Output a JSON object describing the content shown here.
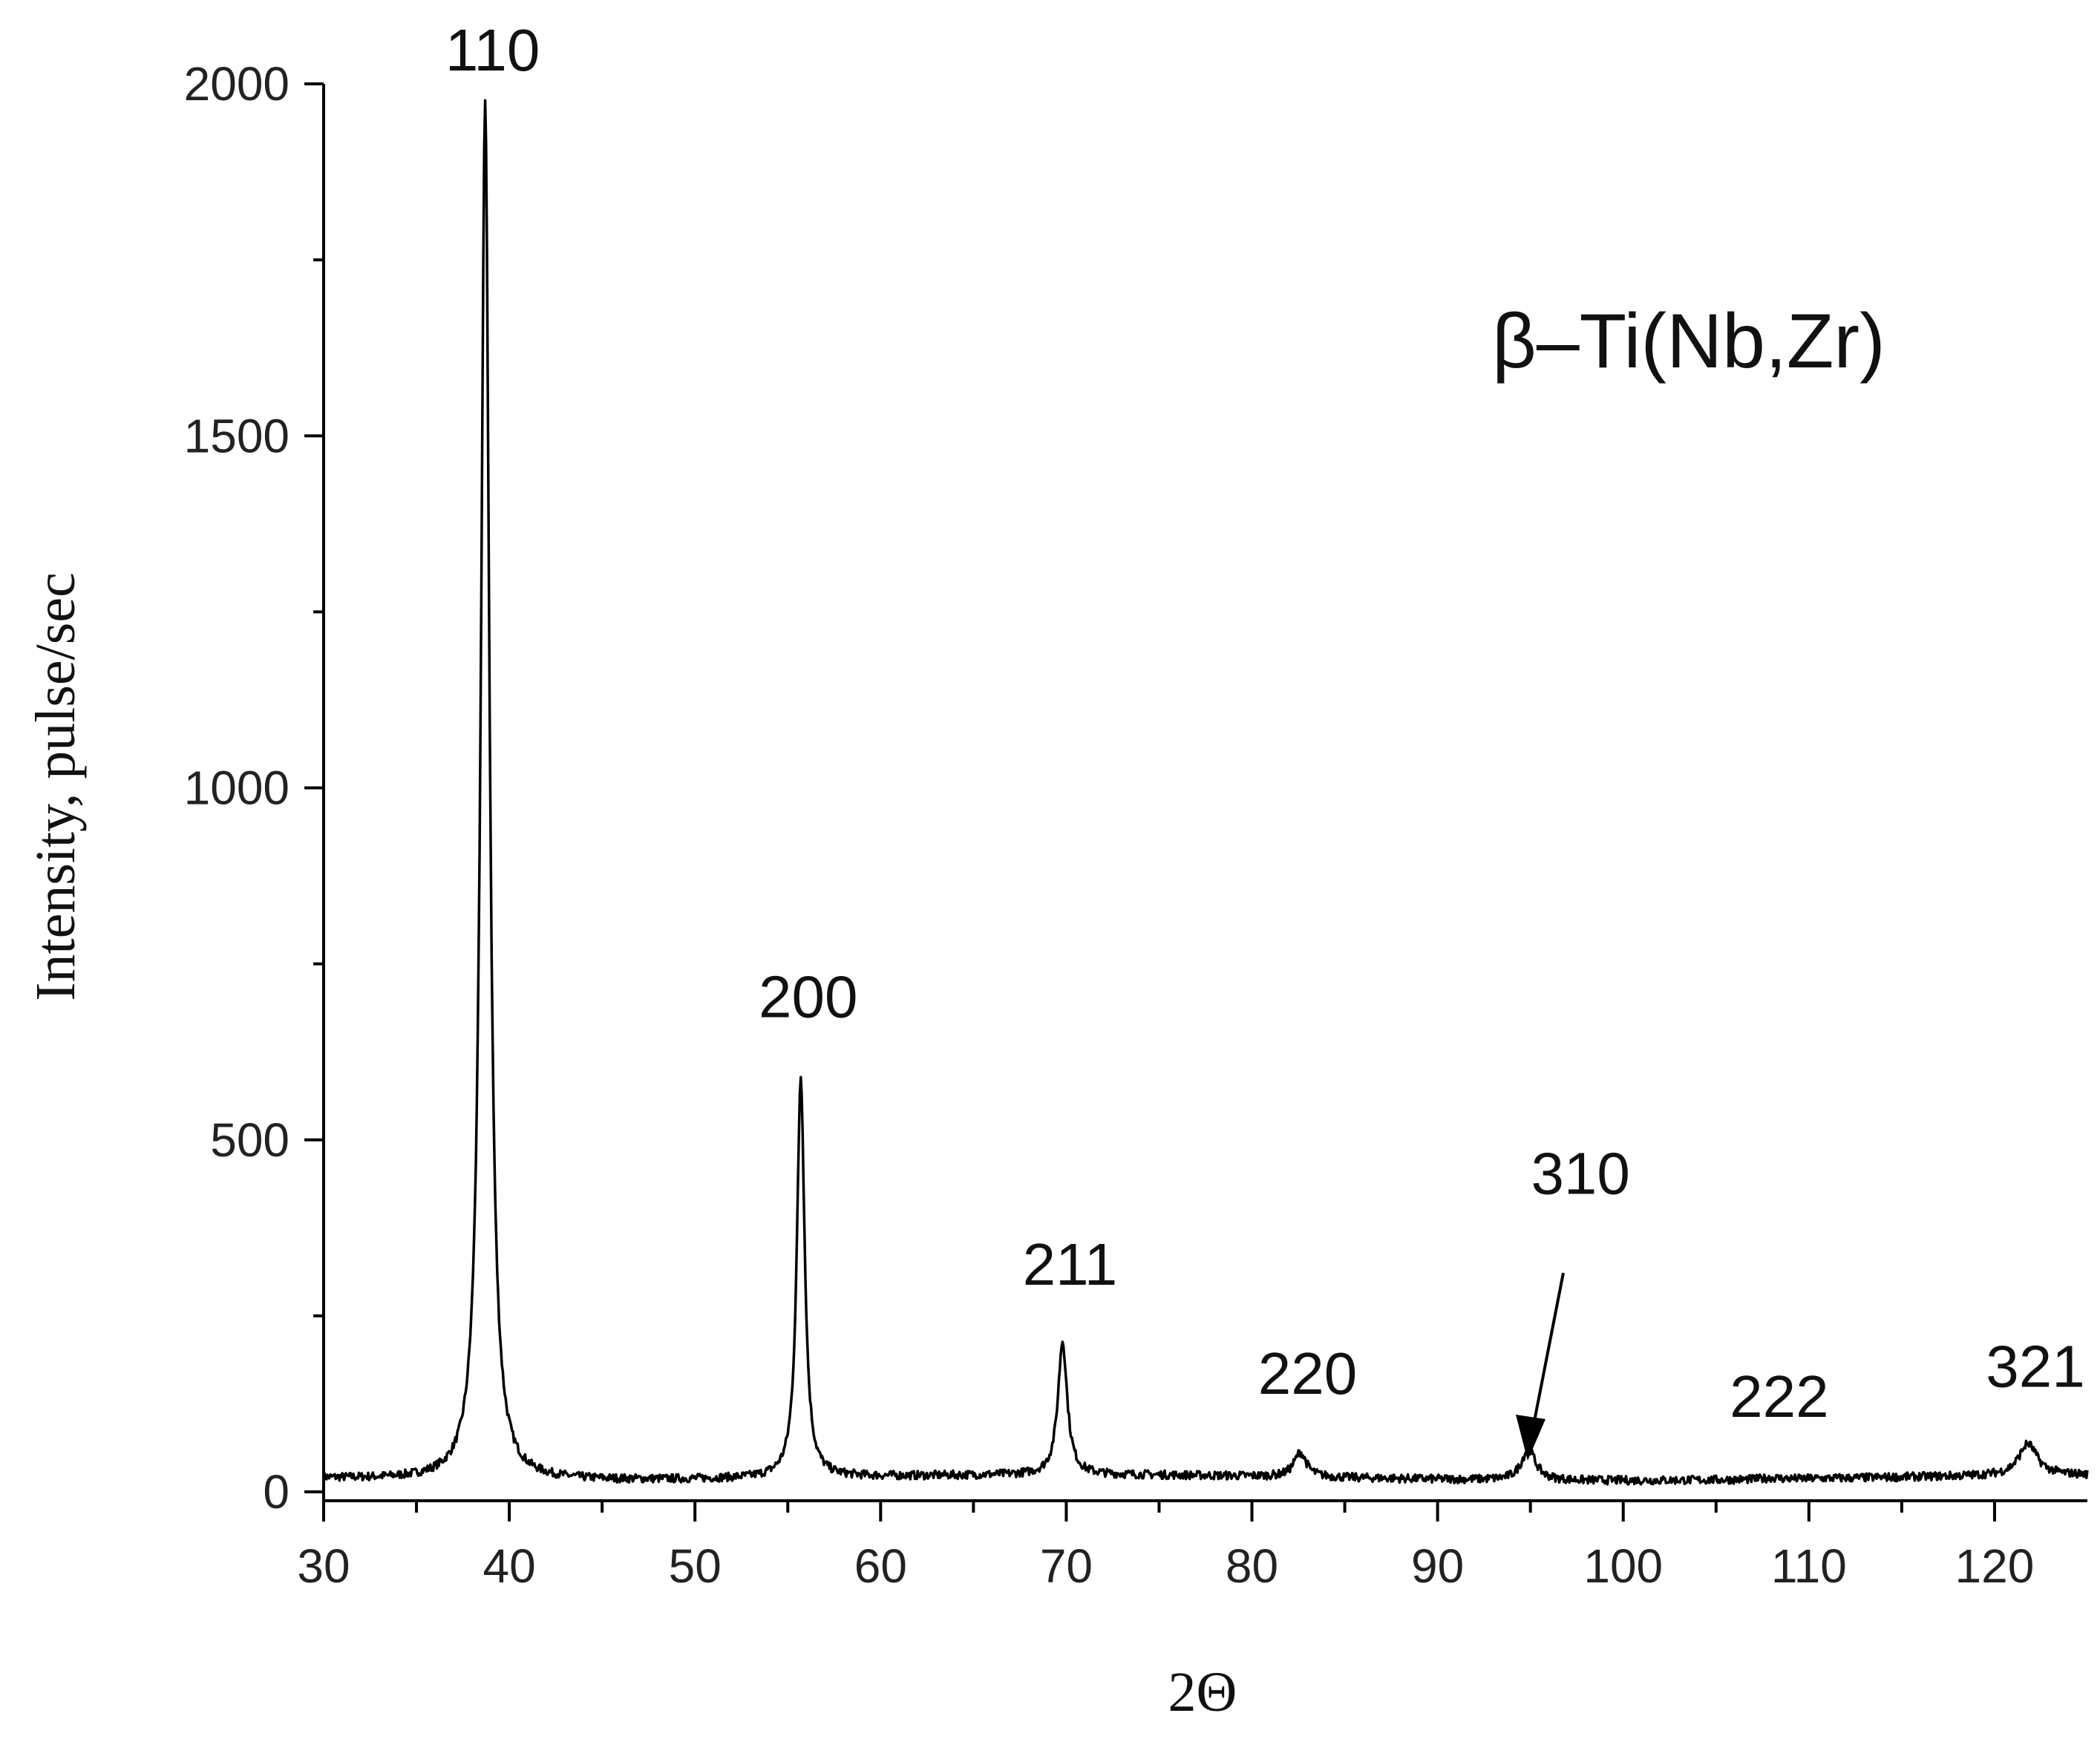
{
  "chart_data": {
    "type": "line",
    "title": "",
    "xlabel": "2Θ",
    "ylabel": "Intensity, pulse/sec",
    "xlim": [
      30,
      125
    ],
    "ylim": [
      0,
      2000
    ],
    "x_ticks": [
      30,
      40,
      50,
      60,
      70,
      80,
      90,
      100,
      110,
      120
    ],
    "y_ticks": [
      0,
      500,
      1000,
      1500,
      2000
    ],
    "grid": false,
    "legend": "none",
    "line_color": "#000000",
    "annotation_text": "β–Ti(Nb,Zr)",
    "baseline": 20,
    "peaks": [
      {
        "label": "110",
        "x": 38.7,
        "y": 1980,
        "width": 0.55
      },
      {
        "label": "200",
        "x": 55.7,
        "y": 590,
        "width": 0.5
      },
      {
        "label": "211",
        "x": 69.8,
        "y": 210,
        "width": 0.6
      },
      {
        "label": "220",
        "x": 82.6,
        "y": 55,
        "width": 0.8
      },
      {
        "label": "310",
        "x": 94.9,
        "y": 65,
        "width": 0.9
      },
      {
        "label": "222",
        "x": 108.0,
        "y": 22,
        "width": 1.0
      },
      {
        "label": "321",
        "x": 121.8,
        "y": 65,
        "width": 1.2
      }
    ]
  }
}
